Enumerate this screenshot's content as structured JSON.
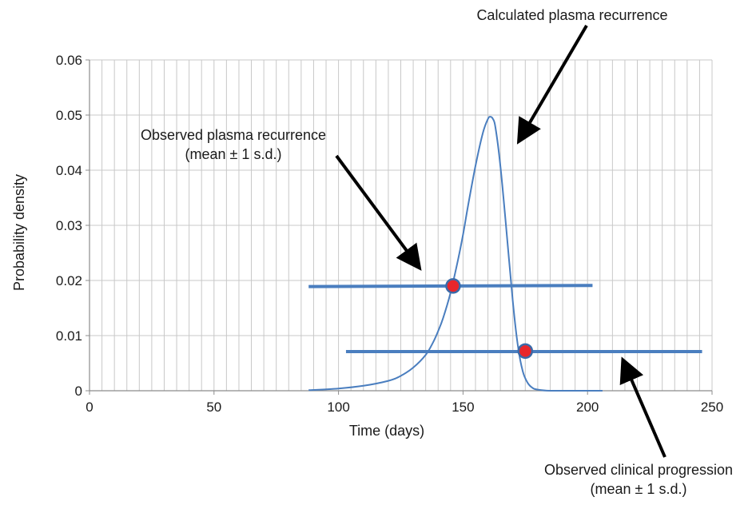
{
  "chart_data": {
    "type": "line",
    "xlabel": "Time (days)",
    "ylabel": "Probability density",
    "xlim": [
      0,
      250
    ],
    "ylim": [
      0,
      0.06
    ],
    "x_ticks": [
      0,
      50,
      100,
      150,
      200,
      250
    ],
    "y_ticks": [
      0,
      0.01,
      0.02,
      0.03,
      0.04,
      0.05,
      0.06
    ],
    "y_tick_labels": [
      "0",
      "0.01",
      "0.02",
      "0.03",
      "0.04",
      "0.05",
      "0.06"
    ],
    "x_grid_step": 5,
    "grid": true,
    "series": [
      {
        "kind": "curve",
        "color": "#4a7ebf",
        "x": [
          88,
          100,
          110,
          120,
          125,
          130,
          135,
          138,
          140,
          142,
          145,
          148,
          150,
          152,
          155,
          158,
          160,
          161,
          162,
          163,
          165,
          167,
          170,
          172,
          174,
          176,
          178,
          180,
          185,
          195,
          206
        ],
        "y": [
          0.0001,
          0.0004,
          0.0009,
          0.0018,
          0.0027,
          0.0042,
          0.0065,
          0.0088,
          0.0108,
          0.0132,
          0.0178,
          0.0238,
          0.0283,
          0.0335,
          0.0408,
          0.0468,
          0.0493,
          0.0497,
          0.0493,
          0.0478,
          0.0408,
          0.0312,
          0.0162,
          0.0082,
          0.0035,
          0.0014,
          0.0005,
          0.0002,
          0.0,
          0.0,
          0.0
        ]
      }
    ],
    "intervals": [
      {
        "kind": "hline",
        "color": "#4a7ebf",
        "x_start": 88,
        "x_end": 202,
        "y_start": 0.0189,
        "y_end": 0.0191,
        "mean_x": 146,
        "mean_y": 0.019
      },
      {
        "kind": "hline",
        "color": "#4a7ebf",
        "x_start": 103,
        "x_end": 246,
        "y_start": 0.0071,
        "y_end": 0.0071,
        "mean_x": 175,
        "mean_y": 0.0072
      }
    ],
    "marker_color": "#e8262b",
    "marker_edge_color": "#3b6aa8",
    "annotations": [
      {
        "lines": [
          "Calculated plasma recurrence"
        ]
      },
      {
        "lines": [
          "Observed plasma recurrence",
          "(mean ± 1 s.d.)"
        ]
      },
      {
        "lines": [
          "Observed clinical progression",
          "(mean ± 1 s.d.)"
        ]
      }
    ]
  }
}
